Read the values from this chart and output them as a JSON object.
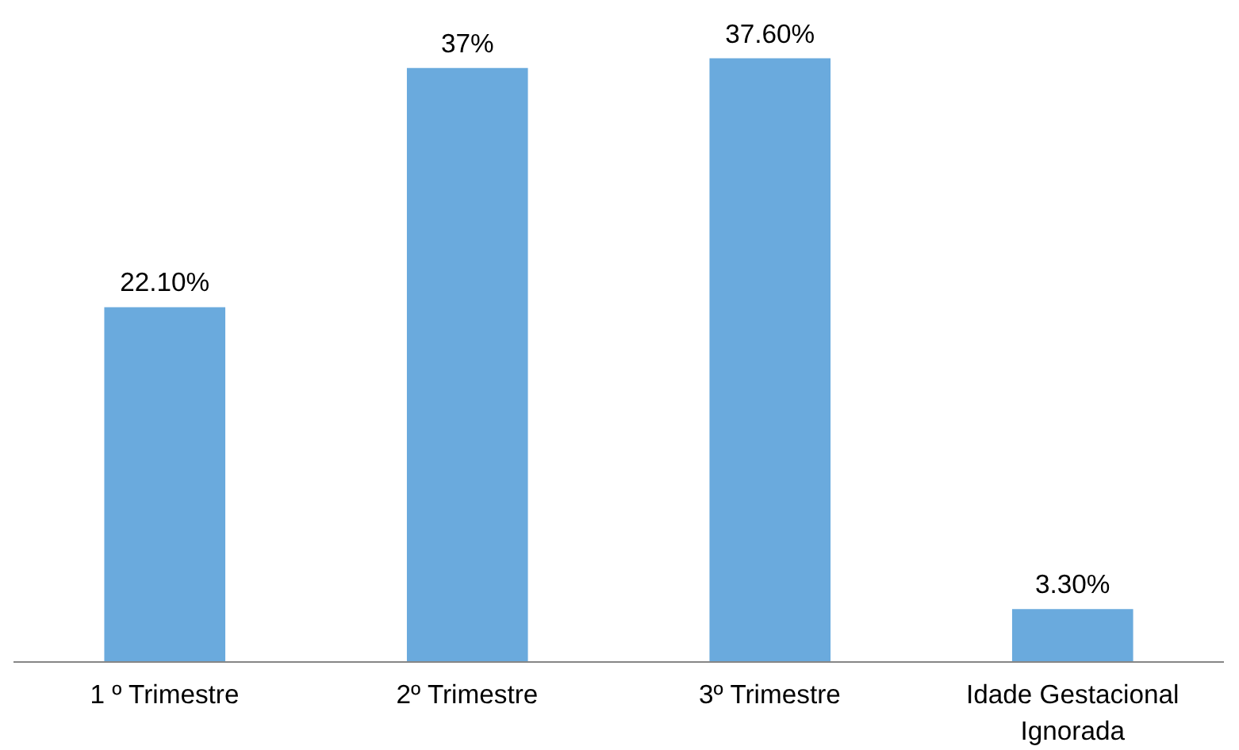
{
  "chart_data": {
    "type": "bar",
    "categories": [
      "1 º Trimestre",
      "2º Trimestre",
      "3º Trimestre",
      "Idade Gestacional Ignorada"
    ],
    "values": [
      22.1,
      37,
      37.6,
      3.3
    ],
    "value_labels": [
      "22.10%",
      "37%",
      "37.60%",
      "3.30%"
    ],
    "color": "#6aaadd",
    "grid": false
  }
}
